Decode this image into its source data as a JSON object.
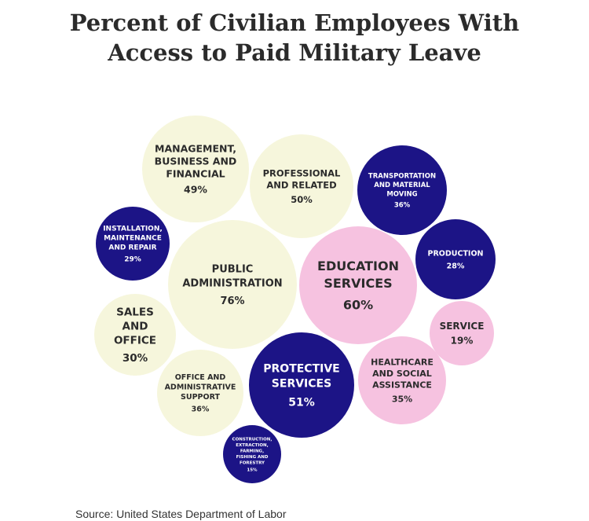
{
  "title_lines": [
    "Percent of Civilian Employees With",
    "Access to Paid Military Leave"
  ],
  "source": "Source: United States Department of Labor",
  "colors": {
    "light": "#f6f6dc",
    "navy": "#1c1486",
    "pink": "#f6c2e0",
    "dark_text": "#2b2b2b",
    "light_text": "#ffffff"
  },
  "chart_data": {
    "type": "packed-bubble",
    "title": "Percent of Civilian Employees With Access to Paid Military Leave",
    "unit": "%",
    "items": [
      {
        "label": "MANAGEMENT, BUSINESS AND FINANCIAL",
        "lines": [
          "MANAGEMENT,",
          "BUSINESS AND",
          "FINANCIAL"
        ],
        "value": 49,
        "group": "light"
      },
      {
        "label": "PROFESSIONAL AND RELATED",
        "lines": [
          "PROFESSIONAL",
          "AND RELATED"
        ],
        "value": 50,
        "group": "light"
      },
      {
        "label": "TRANSPORTATION AND MATERIAL MOVING",
        "lines": [
          "TRANSPORTATION",
          "AND MATERIAL",
          "MOVING"
        ],
        "value": 36,
        "group": "navy"
      },
      {
        "label": "INSTALLATION, MAINTENANCE AND REPAIR",
        "lines": [
          "INSTALLATION,",
          "MAINTENANCE",
          "AND REPAIR"
        ],
        "value": 29,
        "group": "navy"
      },
      {
        "label": "PUBLIC ADMINISTRATION",
        "lines": [
          "PUBLIC",
          "ADMINISTRATION"
        ],
        "value": 76,
        "group": "light"
      },
      {
        "label": "EDUCATION SERVICES",
        "lines": [
          "EDUCATION",
          "SERVICES"
        ],
        "value": 60,
        "group": "pink"
      },
      {
        "label": "PRODUCTION",
        "lines": [
          "PRODUCTION"
        ],
        "value": 28,
        "group": "navy"
      },
      {
        "label": "SALES AND OFFICE",
        "lines": [
          "SALES",
          "AND",
          "OFFICE"
        ],
        "value": 30,
        "group": "light"
      },
      {
        "label": "SERVICE",
        "lines": [
          "SERVICE"
        ],
        "value": 19,
        "group": "pink"
      },
      {
        "label": "OFFICE AND ADMINISTRATIVE SUPPORT",
        "lines": [
          "OFFICE AND",
          "ADMINISTRATIVE",
          "SUPPORT"
        ],
        "value": 36,
        "group": "light"
      },
      {
        "label": "PROTECTIVE SERVICES",
        "lines": [
          "PROTECTIVE",
          "SERVICES"
        ],
        "value": 51,
        "group": "navy"
      },
      {
        "label": "HEALTHCARE AND SOCIAL ASSISTANCE",
        "lines": [
          "HEALTHCARE",
          "AND SOCIAL",
          "ASSISTANCE"
        ],
        "value": 35,
        "group": "pink"
      },
      {
        "label": "CONSTRUCTION, EXTRACTION, FARMING, FISHING AND FORESTRY",
        "lines": [
          "CONSTRUCTION,",
          "EXTRACTION,",
          "FARMING,",
          "FISHING AND",
          "FORESTRY"
        ],
        "value": 15,
        "group": "navy"
      }
    ]
  }
}
